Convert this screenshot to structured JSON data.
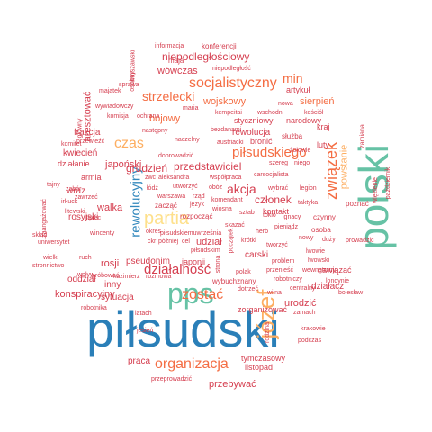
{
  "colors": {
    "background": "#ffffff",
    "dark_blue": "#2a7fb8",
    "teal": "#66c2a5",
    "orange": "#fdae61",
    "dark_orange": "#f46d43",
    "red": "#d53e4f"
  },
  "words": [
    {
      "text": "piłsudski",
      "color": "#2a7fb8"
    },
    {
      "text": "polski",
      "color": "#66c2a5"
    },
    {
      "text": "pps",
      "color": "#66c2a5"
    },
    {
      "text": "partia",
      "color": "#fee08b"
    },
    {
      "text": "józef",
      "color": "#fdae61"
    },
    {
      "text": "związek",
      "color": "#f46d43"
    },
    {
      "text": "organizacja",
      "color": "#f46d43"
    },
    {
      "text": "socjalistyczny",
      "color": "#f46d43"
    },
    {
      "text": "czas",
      "color": "#fdae61"
    },
    {
      "text": "piłsudskiego",
      "color": "#f46d43"
    },
    {
      "text": "działalność",
      "color": "#d53e4f"
    },
    {
      "text": "zostać",
      "color": "#f46d43"
    },
    {
      "text": "rewolucyjny",
      "color": "#3288bd"
    },
    {
      "text": "strzelecki",
      "color": "#f46d43"
    },
    {
      "text": "akcja",
      "color": "#d53e4f"
    },
    {
      "text": "min",
      "color": "#f46d43"
    },
    {
      "text": "niepodległościowy",
      "color": "#d53e4f"
    },
    {
      "text": "członek",
      "color": "#d53e4f"
    },
    {
      "text": "przedstawiciel",
      "color": "#d53e4f"
    },
    {
      "text": "grudzień",
      "color": "#d53e4f"
    },
    {
      "text": "powstanie",
      "color": "#fdae61"
    },
    {
      "text": "konspiracyjny",
      "color": "#d53e4f"
    },
    {
      "text": "bojowy",
      "color": "#f46d43"
    },
    {
      "text": "urodzić",
      "color": "#d53e4f"
    },
    {
      "text": "sierpień",
      "color": "#f46d43"
    },
    {
      "text": "aresztować",
      "color": "#d53e4f"
    },
    {
      "text": "rosji",
      "color": "#d53e4f"
    },
    {
      "text": "walka",
      "color": "#d53e4f"
    },
    {
      "text": "wojskowy",
      "color": "#f46d43"
    },
    {
      "text": "wówczas",
      "color": "#d53e4f"
    },
    {
      "text": "rewolucja",
      "color": "#d53e4f"
    },
    {
      "text": "udział",
      "color": "#d53e4f"
    },
    {
      "text": "japoński",
      "color": "#d53e4f"
    },
    {
      "text": "przebywać",
      "color": "#d53e4f"
    },
    {
      "text": "działacz",
      "color": "#d53e4f"
    },
    {
      "text": "praca",
      "color": "#d53e4f"
    },
    {
      "text": "zorganizować",
      "color": "#d53e4f"
    },
    {
      "text": "rosyjski",
      "color": "#d53e4f"
    },
    {
      "text": "listopad",
      "color": "#d53e4f"
    },
    {
      "text": "tymczasowy",
      "color": "#d53e4f"
    },
    {
      "text": "sytuacja",
      "color": "#d53e4f"
    },
    {
      "text": "pseudonim",
      "color": "#d53e4f"
    },
    {
      "text": "oddział",
      "color": "#d53e4f"
    },
    {
      "text": "inny",
      "color": "#d53e4f"
    },
    {
      "text": "frakcja",
      "color": "#d53e4f"
    },
    {
      "text": "kwiecień",
      "color": "#d53e4f"
    },
    {
      "text": "wraz",
      "color": "#d53e4f"
    },
    {
      "text": "armia",
      "color": "#d53e4f"
    },
    {
      "text": "działanie",
      "color": "#d53e4f"
    },
    {
      "text": "artykuł",
      "color": "#d53e4f"
    },
    {
      "text": "narodowy",
      "color": "#d53e4f"
    },
    {
      "text": "styczniowy",
      "color": "#d53e4f"
    },
    {
      "text": "luty",
      "color": "#d53e4f"
    },
    {
      "text": "kraj",
      "color": "#d53e4f"
    },
    {
      "text": "kontakt",
      "color": "#d53e4f"
    },
    {
      "text": "nawiązać",
      "color": "#d53e4f"
    },
    {
      "text": "maja",
      "color": "#d53e4f"
    },
    {
      "text": "konferencji",
      "color": "#d53e4f"
    },
    {
      "text": "informacja",
      "color": "#d53e4f"
    },
    {
      "text": "niepodległość",
      "color": "#d53e4f"
    },
    {
      "text": "warszawski",
      "color": "#d53e4f"
    },
    {
      "text": "osobny",
      "color": "#d53e4f"
    },
    {
      "text": "sprawa",
      "color": "#d53e4f"
    },
    {
      "text": "majątek",
      "color": "#d53e4f"
    },
    {
      "text": "wywiadowczy",
      "color": "#d53e4f"
    },
    {
      "text": "maria",
      "color": "#d53e4f"
    },
    {
      "text": "komisja",
      "color": "#d53e4f"
    },
    {
      "text": "ochrana",
      "color": "#d53e4f"
    },
    {
      "text": "kempeitai",
      "color": "#d53e4f"
    },
    {
      "text": "wschodni",
      "color": "#d53e4f"
    },
    {
      "text": "kościół",
      "color": "#d53e4f"
    },
    {
      "text": "nowa",
      "color": "#d53e4f"
    },
    {
      "text": "następny",
      "color": "#d53e4f"
    },
    {
      "text": "bezdanami",
      "color": "#d53e4f"
    },
    {
      "text": "główny",
      "color": "#d53e4f"
    },
    {
      "text": "komitet",
      "color": "#d53e4f"
    },
    {
      "text": "przewieźć",
      "color": "#d53e4f"
    },
    {
      "text": "naczelny",
      "color": "#d53e4f"
    },
    {
      "text": "austriacki",
      "color": "#d53e4f"
    },
    {
      "text": "bronić",
      "color": "#d53e4f"
    },
    {
      "text": "służba",
      "color": "#d53e4f"
    },
    {
      "text": "zamiana",
      "color": "#d53e4f"
    },
    {
      "text": "żołowie",
      "color": "#d53e4f"
    },
    {
      "text": "doprowadzić",
      "color": "#d53e4f"
    },
    {
      "text": "szereg",
      "color": "#d53e4f"
    },
    {
      "text": "niego",
      "color": "#d53e4f"
    },
    {
      "text": "tajny",
      "color": "#d53e4f"
    },
    {
      "text": "zwc",
      "color": "#d53e4f"
    },
    {
      "text": "aleksandra",
      "color": "#d53e4f"
    },
    {
      "text": "współpraca",
      "color": "#d53e4f"
    },
    {
      "text": "carsocjalista",
      "color": "#d53e4f"
    },
    {
      "text": "łódź",
      "color": "#d53e4f"
    },
    {
      "text": "utworzyć",
      "color": "#d53e4f"
    },
    {
      "text": "obóz",
      "color": "#d53e4f"
    },
    {
      "text": "wybrać",
      "color": "#d53e4f"
    },
    {
      "text": "legion",
      "color": "#d53e4f"
    },
    {
      "text": "zabór",
      "color": "#d53e4f"
    },
    {
      "text": "irkuck",
      "color": "#d53e4f"
    },
    {
      "text": "zawrzeć",
      "color": "#d53e4f"
    },
    {
      "text": "warszawa",
      "color": "#d53e4f"
    },
    {
      "text": "rząd",
      "color": "#d53e4f"
    },
    {
      "text": "zacząć",
      "color": "#d53e4f"
    },
    {
      "text": "język",
      "color": "#d53e4f"
    },
    {
      "text": "komendant",
      "color": "#d53e4f"
    },
    {
      "text": "taktyka",
      "color": "#d53e4f"
    },
    {
      "text": "litewski",
      "color": "#d53e4f"
    },
    {
      "text": "lipiec",
      "color": "#d53e4f"
    },
    {
      "text": "zaangażować",
      "color": "#d53e4f"
    },
    {
      "text": "rozpocząć",
      "color": "#d53e4f"
    },
    {
      "text": "wiosna",
      "color": "#d53e4f"
    },
    {
      "text": "okres",
      "color": "#d53e4f"
    },
    {
      "text": "sztab",
      "color": "#d53e4f"
    },
    {
      "text": "tokio",
      "color": "#d53e4f"
    },
    {
      "text": "ignacy",
      "color": "#d53e4f"
    },
    {
      "text": "czynny",
      "color": "#d53e4f"
    },
    {
      "text": "pieniądz",
      "color": "#d53e4f"
    },
    {
      "text": "skazać",
      "color": "#d53e4f"
    },
    {
      "text": "piłsudskiemuwrześnia",
      "color": "#d53e4f"
    },
    {
      "text": "herb",
      "color": "#d53e4f"
    },
    {
      "text": "osoba",
      "color": "#d53e4f"
    },
    {
      "text": "poznać",
      "color": "#d53e4f"
    },
    {
      "text": "skład",
      "color": "#d53e4f"
    },
    {
      "text": "wincenty",
      "color": "#d53e4f"
    },
    {
      "text": "uniwersytet",
      "color": "#d53e4f"
    },
    {
      "text": "ckr",
      "color": "#d53e4f"
    },
    {
      "text": "później",
      "color": "#d53e4f"
    },
    {
      "text": "cel",
      "color": "#d53e4f"
    },
    {
      "text": "krótki",
      "color": "#d53e4f"
    },
    {
      "text": "piłsudskim",
      "color": "#d53e4f"
    },
    {
      "text": "tworzyć",
      "color": "#d53e4f"
    },
    {
      "text": "nowy",
      "color": "#d53e4f"
    },
    {
      "text": "duży",
      "color": "#d53e4f"
    },
    {
      "text": "prowadzić",
      "color": "#d53e4f"
    },
    {
      "text": "stronnictwo",
      "color": "#d53e4f"
    },
    {
      "text": "wielki",
      "color": "#d53e4f"
    },
    {
      "text": "ruch",
      "color": "#d53e4f"
    },
    {
      "text": "carski",
      "color": "#d53e4f"
    },
    {
      "text": "przenieść",
      "color": "#d53e4f"
    },
    {
      "text": "wewnętrzny",
      "color": "#d53e4f"
    },
    {
      "text": "wpływ",
      "color": "#d53e4f"
    },
    {
      "text": "próbować",
      "color": "#d53e4f"
    },
    {
      "text": "kazimierz",
      "color": "#d53e4f"
    },
    {
      "text": "rozmowa",
      "color": "#d53e4f"
    },
    {
      "text": "japonii",
      "color": "#d53e4f"
    },
    {
      "text": "początek",
      "color": "#d53e4f"
    },
    {
      "text": "strona",
      "color": "#d53e4f"
    },
    {
      "text": "problem",
      "color": "#d53e4f"
    },
    {
      "text": "lwowie",
      "color": "#d53e4f"
    },
    {
      "text": "lwowski",
      "color": "#d53e4f"
    },
    {
      "text": "wybuchznany",
      "color": "#d53e4f"
    },
    {
      "text": "robotniczy",
      "color": "#d53e4f"
    },
    {
      "text": "londynie",
      "color": "#d53e4f"
    },
    {
      "text": "polak",
      "color": "#d53e4f"
    },
    {
      "text": "dotrzeć",
      "color": "#d53e4f"
    },
    {
      "text": "wilna",
      "color": "#d53e4f"
    },
    {
      "text": "centralny",
      "color": "#d53e4f"
    },
    {
      "text": "bolesław",
      "color": "#d53e4f"
    },
    {
      "text": "robotnika",
      "color": "#d53e4f"
    },
    {
      "text": "latach",
      "color": "#d53e4f"
    },
    {
      "text": "jesień",
      "color": "#d53e4f"
    },
    {
      "text": "zamach",
      "color": "#d53e4f"
    },
    {
      "text": "rodzina",
      "color": "#d53e4f"
    },
    {
      "text": "krakowie",
      "color": "#d53e4f"
    },
    {
      "text": "podczas",
      "color": "#d53e4f"
    },
    {
      "text": "przeprowadzić",
      "color": "#d53e4f"
    },
    {
      "text": "październik",
      "color": "#d53e4f"
    },
    {
      "text": "więzienie",
      "color": "#d53e4f"
    }
  ]
}
